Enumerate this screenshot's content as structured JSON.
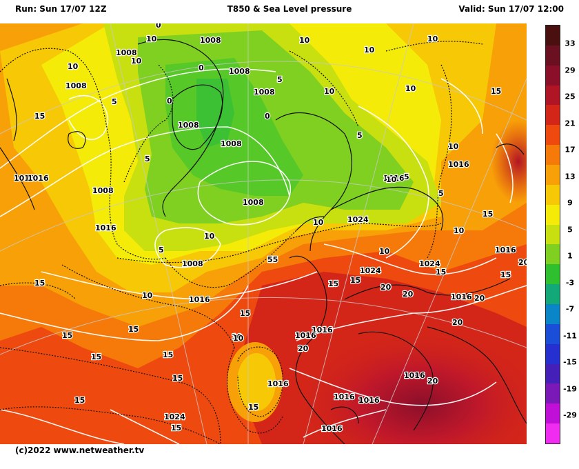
{
  "header": {
    "run": "Run: Sun 17/07 12Z",
    "title": "T850 & Sea Level pressure",
    "valid": "Valid: Sun 17/07 12:00"
  },
  "credit": "(c)2022 www.netweather.tv",
  "colorbar": {
    "labels": [
      "33",
      "29",
      "25",
      "21",
      "17",
      "13",
      "9",
      "5",
      "1",
      "-3",
      "-7",
      "-11",
      "-15",
      "-19",
      "-29"
    ],
    "colors": [
      "#4a1010",
      "#6a1020",
      "#8c0f2a",
      "#b01525",
      "#d42618",
      "#ee4a10",
      "#f57a0a",
      "#f8a008",
      "#f7c806",
      "#f4ec08",
      "#c8e010",
      "#7fd020",
      "#2fc030",
      "#12a878",
      "#0a86c8",
      "#1a4ed8",
      "#2630d0",
      "#4420b8",
      "#7a18b8",
      "#c010d8",
      "#f02cf0"
    ]
  },
  "map": {
    "pressure_labels": [
      {
        "text": "1008"
      },
      {
        "text": "1008"
      },
      {
        "text": "1008"
      },
      {
        "text": "1016"
      },
      {
        "text": "1008"
      },
      {
        "text": "1008"
      },
      {
        "text": "1008"
      },
      {
        "text": "1008"
      },
      {
        "text": "1008"
      },
      {
        "text": "1008"
      },
      {
        "text": "1016"
      },
      {
        "text": "1008"
      },
      {
        "text": "1016"
      },
      {
        "text": "1016"
      },
      {
        "text": "1024"
      },
      {
        "text": "1024"
      },
      {
        "text": "1024"
      },
      {
        "text": "1016"
      },
      {
        "text": "1016"
      },
      {
        "text": "1016"
      },
      {
        "text": "1016"
      },
      {
        "text": "1016"
      },
      {
        "text": "1016"
      },
      {
        "text": "1016"
      },
      {
        "text": "1016"
      },
      {
        "text": "1016"
      },
      {
        "text": "1024"
      },
      {
        "text": "1016"
      },
      {
        "text": "1016"
      },
      {
        "text": "1016"
      }
    ],
    "temp_labels": [
      {
        "text": "0"
      },
      {
        "text": "10"
      },
      {
        "text": "10"
      },
      {
        "text": "10"
      },
      {
        "text": "15"
      },
      {
        "text": "0"
      },
      {
        "text": "5"
      },
      {
        "text": "0"
      },
      {
        "text": "10"
      },
      {
        "text": "10"
      },
      {
        "text": "10"
      },
      {
        "text": "5"
      },
      {
        "text": "15"
      },
      {
        "text": "5"
      },
      {
        "text": "10"
      },
      {
        "text": "5"
      },
      {
        "text": "15"
      },
      {
        "text": "10"
      },
      {
        "text": "5"
      },
      {
        "text": "15"
      },
      {
        "text": "10"
      },
      {
        "text": "5"
      },
      {
        "text": "15"
      },
      {
        "text": "10"
      },
      {
        "text": "10"
      },
      {
        "text": "10"
      },
      {
        "text": "15"
      },
      {
        "text": "15"
      },
      {
        "text": "20"
      },
      {
        "text": "15"
      },
      {
        "text": "20"
      },
      {
        "text": "20"
      },
      {
        "text": "20"
      },
      {
        "text": "15"
      },
      {
        "text": "15"
      },
      {
        "text": "20"
      },
      {
        "text": "10"
      },
      {
        "text": "20"
      },
      {
        "text": "15"
      },
      {
        "text": "15"
      },
      {
        "text": "15"
      },
      {
        "text": "15"
      },
      {
        "text": "15"
      },
      {
        "text": "20"
      },
      {
        "text": "15"
      },
      {
        "text": "15"
      },
      {
        "text": "15"
      },
      {
        "text": "10"
      },
      {
        "text": "5"
      },
      {
        "text": "10"
      },
      {
        "text": "0"
      },
      {
        "text": "5"
      },
      {
        "text": "10"
      },
      {
        "text": "10"
      }
    ]
  }
}
